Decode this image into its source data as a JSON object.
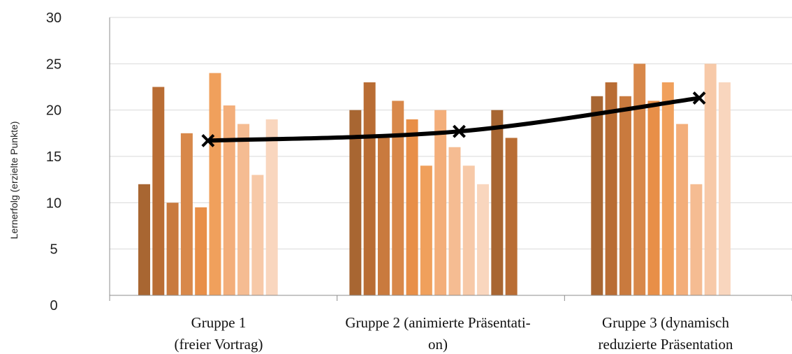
{
  "chart_data": {
    "type": "bar",
    "ylabel": "Lernerfolg (erzielte Punkte)",
    "ylim": [
      0,
      30
    ],
    "yticks": [
      0,
      5,
      10,
      15,
      20,
      25,
      30
    ],
    "grid": true,
    "categories": [
      [
        "Gruppe 1",
        "(freier Vortrag)"
      ],
      [
        "Gruppe 2 (animierte Präsentati-",
        "on)"
      ],
      [
        "Gruppe 3 (dynamisch",
        "reduzierte Präsentation"
      ]
    ],
    "groups": [
      {
        "values": [
          12,
          22.5,
          10,
          17.5,
          9.5,
          24,
          20.5,
          18.5,
          13,
          19
        ]
      },
      {
        "values": [
          20,
          23,
          17,
          21,
          19,
          14,
          20,
          16,
          14,
          12,
          20,
          17
        ]
      },
      {
        "values": [
          21.5,
          23,
          21.5,
          25,
          21,
          23,
          18.5,
          12,
          25,
          23
        ]
      }
    ],
    "bar_colors": [
      "#a86632",
      "#b96d34",
      "#c97a3e",
      "#d8884a",
      "#e88f48",
      "#f0a05c",
      "#f3ae7a",
      "#f5bc92",
      "#f7c9a8",
      "#f9d6be"
    ],
    "mean_line": {
      "values": [
        16.7,
        17.7,
        21.3
      ],
      "color": "#000000",
      "marker": "x"
    }
  }
}
